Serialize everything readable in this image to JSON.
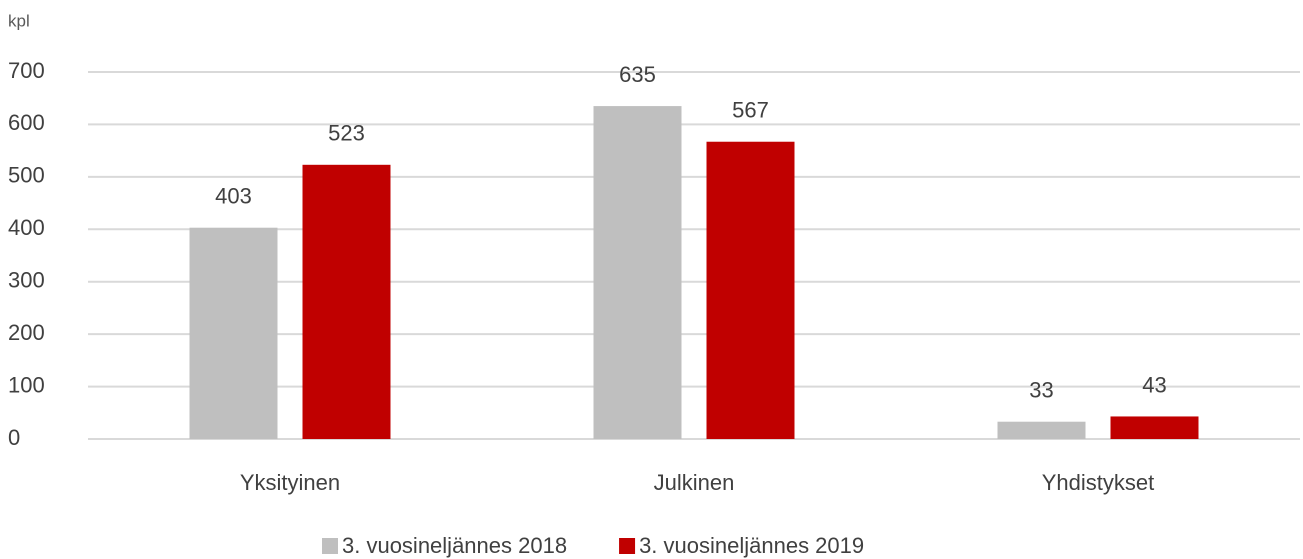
{
  "chart_data": {
    "type": "bar",
    "y_label": "kpl",
    "categories": [
      "Yksityinen",
      "Julkinen",
      "Yhdistykset"
    ],
    "series": [
      {
        "name": "3. vuosineljännes 2018",
        "color": "#bfbfbf",
        "values": [
          403,
          635,
          33
        ]
      },
      {
        "name": "3. vuosineljännes 2019",
        "color": "#c00000",
        "values": [
          523,
          567,
          43
        ]
      }
    ],
    "ylim": [
      0,
      700
    ],
    "yticks": [
      0,
      100,
      200,
      300,
      400,
      500,
      600,
      700
    ],
    "grid": true,
    "legend": "bottom"
  }
}
